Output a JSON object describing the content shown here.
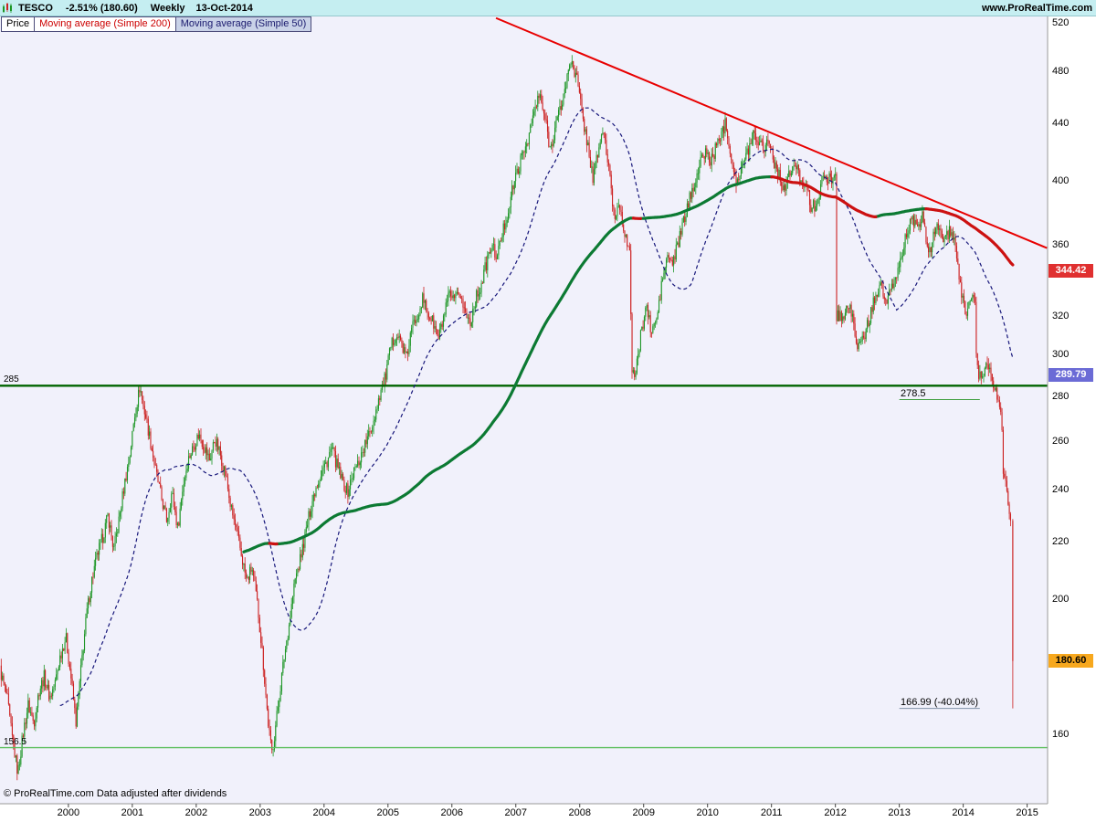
{
  "header": {
    "symbol": "TESCO",
    "change": "-2.51% (180.60)",
    "timeframe": "Weekly",
    "date": "13-Oct-2014",
    "site": "www.ProRealTime.com"
  },
  "legend": [
    {
      "label": "Price",
      "color": "#000000",
      "bg": "#ffffff"
    },
    {
      "label": "Moving average (Simple 200)",
      "color": "#cc0000",
      "bg": "#ffffff"
    },
    {
      "label": "Moving average (Simple 50)",
      "color": "#1a1a6e",
      "bg": "#c9d2e8"
    }
  ],
  "footer_note": "© ProRealTime.com  Data adjusted after dividends",
  "colors": {
    "header_bg": "#c5eef1",
    "plot_bg": "#f1f1fb",
    "up": "#1e9627",
    "down": "#cc2020",
    "ma200_rising": "#0c7a33",
    "ma200_falling": "#cc1111",
    "ma50": "#16167a",
    "trendline": "#e80000",
    "axis_border": "#999999"
  },
  "price_boxes": [
    {
      "value": "344.42",
      "price": 344.42,
      "role": "ma200-current",
      "bg": "#e03030",
      "fg": "#ffffff"
    },
    {
      "value": "289.79",
      "price": 289.79,
      "role": "ma50-current",
      "bg": "#6b6bd6",
      "fg": "#ffffff"
    },
    {
      "value": "180.60",
      "price": 180.6,
      "role": "last-price",
      "bg": "#f7a81e",
      "fg": "#000000"
    }
  ],
  "chart_data": {
    "type": "candlestick",
    "symbol": "TESCO",
    "timeframe": "weekly",
    "y_scale": "log",
    "price_range": [
      142.6,
      525.4
    ],
    "time_range": [
      1998.93,
      2015.32
    ],
    "x_ticks": [
      2000,
      2001,
      2002,
      2003,
      2004,
      2005,
      2006,
      2007,
      2008,
      2009,
      2010,
      2011,
      2012,
      2013,
      2014,
      2015
    ],
    "y_ticks": [
      520,
      480,
      440,
      400,
      360,
      320,
      300,
      280,
      260,
      240,
      220,
      200,
      160
    ],
    "last": {
      "date": "13-Oct-2014",
      "close": 180.6,
      "low": 166.99,
      "change_pct": -2.51
    },
    "moving_averages": [
      {
        "type": "simple",
        "period": 200,
        "current": 344.42
      },
      {
        "type": "simple",
        "period": 50,
        "current": 289.79
      }
    ],
    "horizontal_levels": [
      {
        "price": 285,
        "label": "285",
        "color": "#006400",
        "width": 2.4
      },
      {
        "price": 156.5,
        "label": "156.5",
        "color": "#5cbf5c",
        "width": 1.4
      }
    ],
    "trendline": {
      "t1": 2006.69,
      "p1": 524,
      "t2": 2015.31,
      "p2": 358
    },
    "measure": {
      "from_label": "278.5",
      "from_price": 278.5,
      "to_label": "166.99 (-40.04%)",
      "to_price": 166.99,
      "t_start": 2013.0,
      "t_end": 2014.26,
      "from_line_color": "#3f9f3f",
      "to_line_color": "#8090a8"
    },
    "monthly_closes": [
      [
        1998.93,
        178
      ],
      [
        1999.04,
        170
      ],
      [
        1999.12,
        159
      ],
      [
        1999.21,
        150
      ],
      [
        1999.29,
        160
      ],
      [
        1999.37,
        168
      ],
      [
        1999.46,
        163
      ],
      [
        1999.54,
        172
      ],
      [
        1999.62,
        176
      ],
      [
        1999.71,
        170
      ],
      [
        1999.79,
        174
      ],
      [
        1999.87,
        182
      ],
      [
        1999.96,
        188
      ],
      [
        2000.04,
        176
      ],
      [
        2000.12,
        163
      ],
      [
        2000.21,
        181
      ],
      [
        2000.29,
        196
      ],
      [
        2000.37,
        207
      ],
      [
        2000.46,
        216
      ],
      [
        2000.54,
        222
      ],
      [
        2000.62,
        230
      ],
      [
        2000.71,
        217
      ],
      [
        2000.79,
        228
      ],
      [
        2000.87,
        241
      ],
      [
        2000.96,
        254
      ],
      [
        2001.04,
        272
      ],
      [
        2001.08,
        278
      ],
      [
        2001.12,
        285
      ],
      [
        2001.16,
        277
      ],
      [
        2001.21,
        271
      ],
      [
        2001.29,
        259
      ],
      [
        2001.37,
        247
      ],
      [
        2001.46,
        236
      ],
      [
        2001.54,
        228
      ],
      [
        2001.62,
        239
      ],
      [
        2001.71,
        225
      ],
      [
        2001.79,
        241
      ],
      [
        2001.87,
        252
      ],
      [
        2001.96,
        258
      ],
      [
        2002.04,
        263
      ],
      [
        2002.12,
        258
      ],
      [
        2002.21,
        252
      ],
      [
        2002.29,
        261
      ],
      [
        2002.37,
        255
      ],
      [
        2002.46,
        246
      ],
      [
        2002.54,
        233
      ],
      [
        2002.62,
        225
      ],
      [
        2002.71,
        215
      ],
      [
        2002.79,
        206
      ],
      [
        2002.87,
        211
      ],
      [
        2002.96,
        198
      ],
      [
        2003.04,
        182
      ],
      [
        2003.12,
        164
      ],
      [
        2003.18,
        155
      ],
      [
        2003.21,
        158
      ],
      [
        2003.29,
        169
      ],
      [
        2003.37,
        181
      ],
      [
        2003.46,
        193
      ],
      [
        2003.54,
        206
      ],
      [
        2003.62,
        213
      ],
      [
        2003.71,
        223
      ],
      [
        2003.79,
        233
      ],
      [
        2003.87,
        241
      ],
      [
        2003.96,
        247
      ],
      [
        2004.04,
        251
      ],
      [
        2004.12,
        257
      ],
      [
        2004.21,
        249
      ],
      [
        2004.29,
        243
      ],
      [
        2004.37,
        239
      ],
      [
        2004.46,
        247
      ],
      [
        2004.54,
        251
      ],
      [
        2004.62,
        257
      ],
      [
        2004.71,
        263
      ],
      [
        2004.79,
        271
      ],
      [
        2004.87,
        281
      ],
      [
        2004.96,
        289
      ],
      [
        2005.04,
        303
      ],
      [
        2005.12,
        311
      ],
      [
        2005.21,
        306
      ],
      [
        2005.29,
        298
      ],
      [
        2005.37,
        313
      ],
      [
        2005.46,
        321
      ],
      [
        2005.54,
        329
      ],
      [
        2005.62,
        322
      ],
      [
        2005.71,
        316
      ],
      [
        2005.79,
        308
      ],
      [
        2005.87,
        319
      ],
      [
        2005.96,
        331
      ],
      [
        2006.04,
        327
      ],
      [
        2006.12,
        333
      ],
      [
        2006.21,
        321
      ],
      [
        2006.29,
        317
      ],
      [
        2006.37,
        329
      ],
      [
        2006.46,
        337
      ],
      [
        2006.54,
        349
      ],
      [
        2006.62,
        359
      ],
      [
        2006.71,
        353
      ],
      [
        2006.79,
        367
      ],
      [
        2006.87,
        379
      ],
      [
        2006.96,
        397
      ],
      [
        2007.04,
        409
      ],
      [
        2007.12,
        419
      ],
      [
        2007.21,
        433
      ],
      [
        2007.29,
        449
      ],
      [
        2007.37,
        461
      ],
      [
        2007.46,
        443
      ],
      [
        2007.54,
        421
      ],
      [
        2007.62,
        439
      ],
      [
        2007.71,
        453
      ],
      [
        2007.79,
        471
      ],
      [
        2007.85,
        487
      ],
      [
        2007.88,
        490
      ],
      [
        2007.92,
        479
      ],
      [
        2007.96,
        473
      ],
      [
        2008.04,
        446
      ],
      [
        2008.12,
        426
      ],
      [
        2008.21,
        401
      ],
      [
        2008.29,
        421
      ],
      [
        2008.37,
        436
      ],
      [
        2008.46,
        406
      ],
      [
        2008.54,
        376
      ],
      [
        2008.62,
        386
      ],
      [
        2008.71,
        366
      ],
      [
        2008.79,
        351
      ],
      [
        2008.81,
        295
      ],
      [
        2008.87,
        289
      ],
      [
        2008.96,
        311
      ],
      [
        2009.04,
        326
      ],
      [
        2009.12,
        311
      ],
      [
        2009.21,
        319
      ],
      [
        2009.29,
        339
      ],
      [
        2009.37,
        353
      ],
      [
        2009.46,
        349
      ],
      [
        2009.54,
        361
      ],
      [
        2009.62,
        373
      ],
      [
        2009.71,
        387
      ],
      [
        2009.79,
        399
      ],
      [
        2009.87,
        409
      ],
      [
        2009.96,
        421
      ],
      [
        2010.04,
        413
      ],
      [
        2010.12,
        421
      ],
      [
        2010.21,
        433
      ],
      [
        2010.29,
        441
      ],
      [
        2010.37,
        416
      ],
      [
        2010.46,
        399
      ],
      [
        2010.54,
        409
      ],
      [
        2010.62,
        419
      ],
      [
        2010.71,
        433
      ],
      [
        2010.79,
        429
      ],
      [
        2010.87,
        423
      ],
      [
        2010.96,
        429
      ],
      [
        2011.04,
        413
      ],
      [
        2011.12,
        403
      ],
      [
        2011.21,
        395
      ],
      [
        2011.29,
        405
      ],
      [
        2011.37,
        411
      ],
      [
        2011.46,
        401
      ],
      [
        2011.54,
        399
      ],
      [
        2011.62,
        381
      ],
      [
        2011.71,
        387
      ],
      [
        2011.79,
        399
      ],
      [
        2011.87,
        403
      ],
      [
        2011.96,
        402
      ],
      [
        2012.0,
        402
      ],
      [
        2012.02,
        318
      ],
      [
        2012.04,
        321
      ],
      [
        2012.12,
        319
      ],
      [
        2012.21,
        326
      ],
      [
        2012.29,
        315
      ],
      [
        2012.37,
        302
      ],
      [
        2012.46,
        311
      ],
      [
        2012.54,
        319
      ],
      [
        2012.62,
        331
      ],
      [
        2012.71,
        339
      ],
      [
        2012.79,
        326
      ],
      [
        2012.87,
        333
      ],
      [
        2012.96,
        343
      ],
      [
        2013.04,
        353
      ],
      [
        2013.12,
        369
      ],
      [
        2013.21,
        376
      ],
      [
        2013.29,
        367
      ],
      [
        2013.37,
        379
      ],
      [
        2013.46,
        353
      ],
      [
        2013.54,
        365
      ],
      [
        2013.62,
        373
      ],
      [
        2013.71,
        361
      ],
      [
        2013.79,
        369
      ],
      [
        2013.87,
        359
      ],
      [
        2013.96,
        335
      ],
      [
        2014.04,
        321
      ],
      [
        2014.12,
        331
      ],
      [
        2014.19,
        327
      ],
      [
        2014.21,
        293
      ],
      [
        2014.29,
        287
      ],
      [
        2014.37,
        299
      ],
      [
        2014.46,
        286
      ],
      [
        2014.54,
        279
      ],
      [
        2014.6,
        275
      ],
      [
        2014.62,
        247
      ],
      [
        2014.67,
        243
      ],
      [
        2014.71,
        232
      ],
      [
        2014.74,
        228
      ],
      [
        2014.755,
        224
      ],
      [
        2014.775,
        180.6
      ]
    ]
  }
}
